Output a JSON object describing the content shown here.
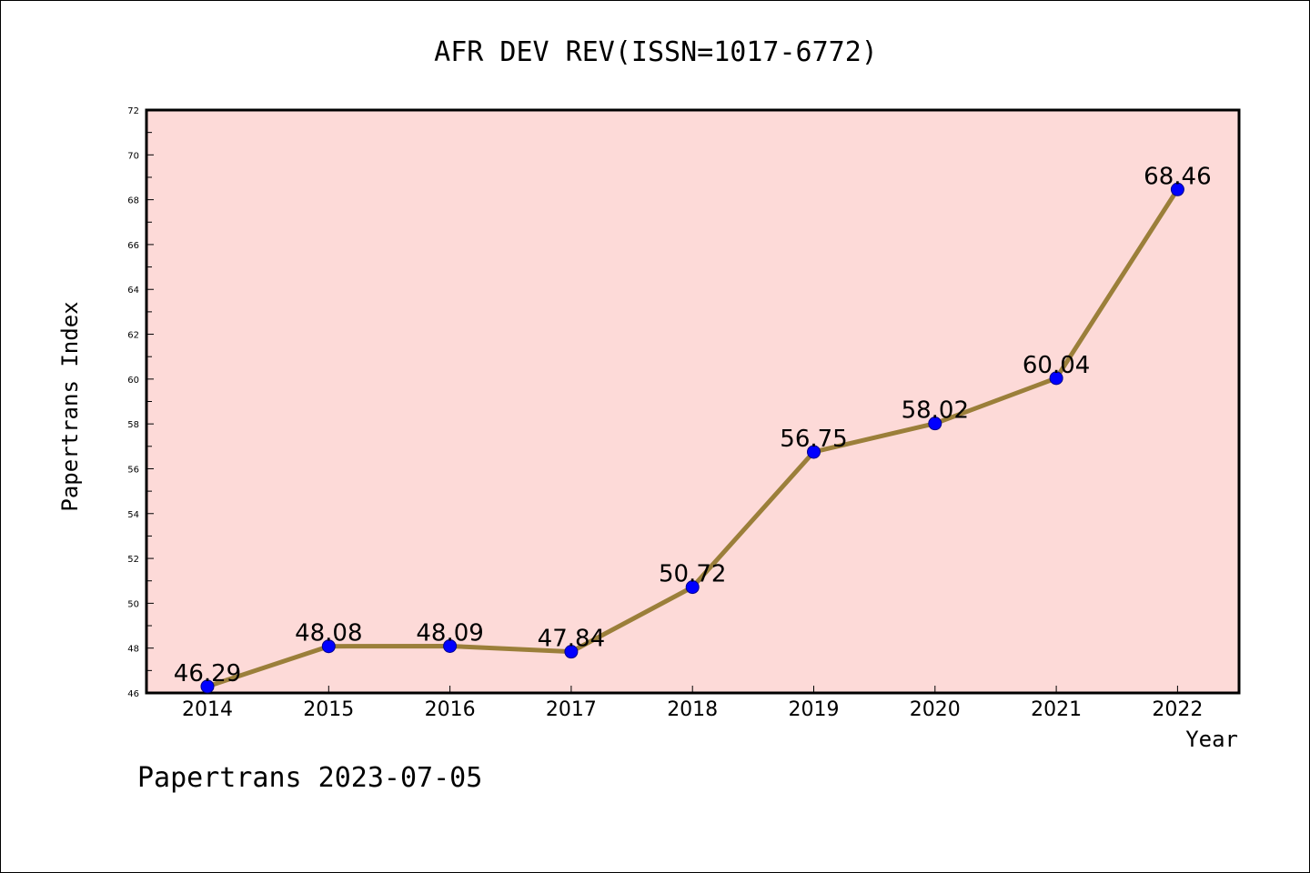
{
  "chart_data": {
    "type": "line",
    "title": "AFR DEV REV(ISSN=1017-6772)",
    "xlabel": "Year",
    "ylabel": "Papertrans Index",
    "categories": [
      "2014",
      "2015",
      "2016",
      "2017",
      "2018",
      "2019",
      "2020",
      "2021",
      "2022"
    ],
    "series": [
      {
        "values": [
          46.29,
          48.08,
          48.09,
          47.84,
          50.72,
          56.75,
          58.02,
          60.04,
          68.46
        ]
      }
    ],
    "data_labels": [
      "46.29",
      "48.08",
      "48.09",
      "47.84",
      "50.72",
      "56.75",
      "58.02",
      "60.04",
      "68.46"
    ],
    "ylim": [
      46,
      72
    ],
    "yticks": [
      46,
      48,
      50,
      52,
      54,
      56,
      58,
      60,
      62,
      64,
      66,
      68,
      70,
      72
    ],
    "grid": false,
    "colors": {
      "plot_background": "#fddad8",
      "line": "#9b7f3a",
      "marker": "#0000ff"
    }
  },
  "footer": "Papertrans 2023-07-05"
}
